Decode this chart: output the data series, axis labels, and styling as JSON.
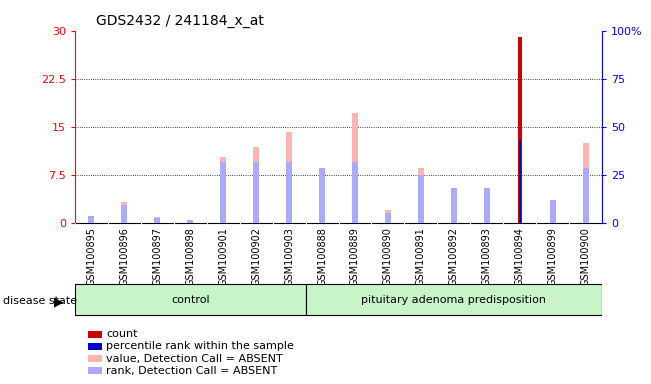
{
  "title": "GDS2432 / 241184_x_at",
  "samples": [
    "GSM100895",
    "GSM100896",
    "GSM100897",
    "GSM100898",
    "GSM100901",
    "GSM100902",
    "GSM100903",
    "GSM100888",
    "GSM100889",
    "GSM100890",
    "GSM100891",
    "GSM100892",
    "GSM100893",
    "GSM100894",
    "GSM100899",
    "GSM100900"
  ],
  "value_absent": [
    1.0,
    3.2,
    0.9,
    0.5,
    10.2,
    11.8,
    14.2,
    8.0,
    17.2,
    2.0,
    8.5,
    4.0,
    4.5,
    0.0,
    2.5,
    12.5
  ],
  "rank_absent": [
    1.0,
    2.8,
    0.8,
    0.4,
    9.5,
    9.5,
    9.5,
    8.5,
    9.5,
    1.5,
    7.5,
    5.5,
    5.5,
    0.0,
    3.5,
    8.5
  ],
  "count": [
    0.0,
    0.0,
    0.0,
    0.0,
    0.0,
    0.0,
    0.0,
    0.0,
    0.0,
    0.0,
    0.0,
    0.0,
    0.0,
    29.0,
    0.0,
    0.0
  ],
  "percentile": [
    0.0,
    0.0,
    0.0,
    0.0,
    0.0,
    0.0,
    0.0,
    0.0,
    0.0,
    0.0,
    0.0,
    0.0,
    0.0,
    43.0,
    0.0,
    0.0
  ],
  "ylim_left": [
    0,
    30
  ],
  "ylim_right": [
    0,
    100
  ],
  "yticks_left": [
    0,
    7.5,
    15,
    22.5,
    30
  ],
  "yticks_right": [
    0,
    25,
    50,
    75,
    100
  ],
  "ytick_labels_left": [
    "0",
    "7.5",
    "15",
    "22.5",
    "30"
  ],
  "ytick_labels_right": [
    "0",
    "25",
    "50",
    "75",
    "100%"
  ],
  "color_value_absent": "#ffb3b3",
  "color_rank_absent": "#aaaaff",
  "color_count": "#cc0000",
  "color_percentile": "#0000cc",
  "group_bg": "#c8f5c8",
  "control_count": 7,
  "pituitary_count": 9,
  "bar_width": 0.18,
  "count_bar_width": 0.12,
  "percentile_bar_width": 0.06
}
